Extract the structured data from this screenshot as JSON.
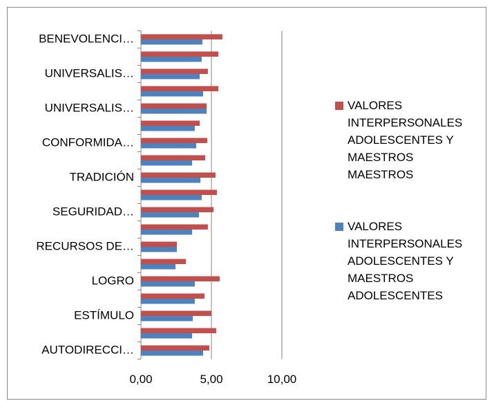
{
  "chart_data": {
    "type": "hbar",
    "categories": [
      "BENEVOLENCI…",
      null,
      "UNIVERSALIS…",
      null,
      "UNIVERSALIS…",
      null,
      "CONFORMIDA…",
      null,
      "TRADICIÓN",
      null,
      "SEGURIDAD…",
      null,
      "RECURSOS DE…",
      null,
      "LOGRO",
      null,
      "ESTÍMULO",
      null,
      "AUTODIRECCI…"
    ],
    "series": [
      {
        "name": "VALORES INTERPERSONALES ADOLESCENTES Y MAESTROS MAESTROS",
        "color": "#c0504d",
        "values": [
          5.78,
          5.49,
          4.75,
          5.49,
          4.66,
          4.17,
          4.71,
          4.56,
          5.29,
          5.39,
          5.15,
          4.75,
          2.55,
          3.19,
          5.59,
          4.51,
          5.0,
          5.34,
          4.85
        ]
      },
      {
        "name": "VALORES INTERPERSONALES ADOLESCENTES Y MAESTROS ADOLESCENTES",
        "color": "#4f81bd",
        "values": [
          4.36,
          4.31,
          4.17,
          4.41,
          4.66,
          3.82,
          3.92,
          3.63,
          4.22,
          4.31,
          4.12,
          3.63,
          2.55,
          2.45,
          3.82,
          3.82,
          3.68,
          3.63,
          4.41
        ]
      }
    ],
    "xlim": [
      0,
      10
    ],
    "xticks": [
      {
        "value": 0,
        "label": "0,00"
      },
      {
        "value": 5,
        "label": "5,00"
      },
      {
        "value": 10,
        "label": "10,00"
      }
    ],
    "grid": true,
    "legend": "right"
  }
}
